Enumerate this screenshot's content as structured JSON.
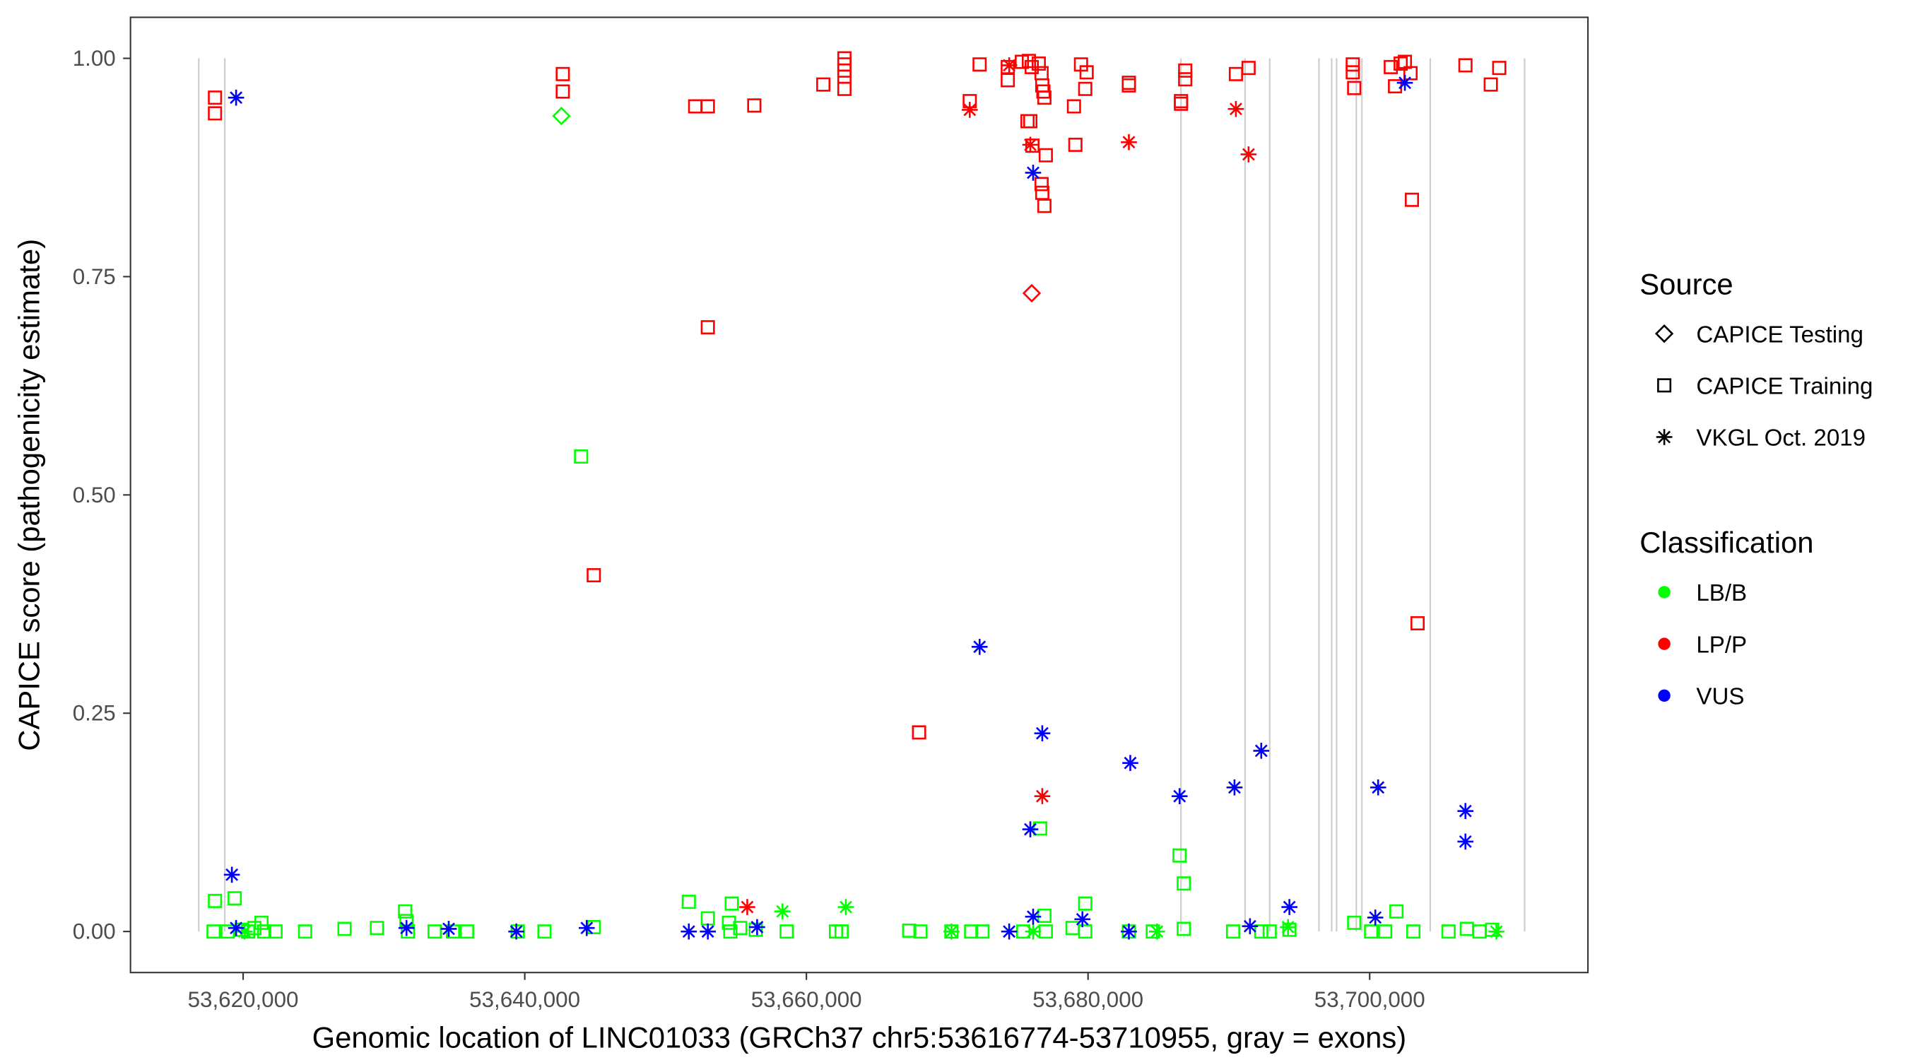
{
  "chart_data": {
    "type": "scatter",
    "xlabel": "Genomic location of LINC01033 (GRCh37 chr5:53616774-53710955, gray = exons)",
    "ylabel": "CAPICE score (pathogenicity estimate)",
    "xlim": [
      53612000,
      53715500
    ],
    "ylim": [
      -0.047,
      1.047
    ],
    "x_ticks": [
      53620000,
      53640000,
      53660000,
      53680000,
      53700000
    ],
    "x_tick_labels": [
      "53,620,000",
      "53,640,000",
      "53,660,000",
      "53,680,000",
      "53,700,000"
    ],
    "y_ticks": [
      0,
      0.25,
      0.5,
      0.75,
      1.0
    ],
    "y_tick_labels": [
      "0.00",
      "0.25",
      "0.50",
      "0.75",
      "1.00"
    ],
    "grid": false,
    "exons": [
      53616850,
      53618700,
      53686600,
      53691150,
      53692900,
      53696400,
      53697300,
      53697650,
      53699050,
      53699450,
      53704300,
      53711000
    ],
    "colors": {
      "LB/B": "#00ff00",
      "LP/P": "#ff0000",
      "VUS": "#0000ff",
      "exon": "#cccccc"
    },
    "legend": {
      "placement": "right",
      "source_title": "Source",
      "source_items": [
        {
          "label": "CAPICE Testing",
          "shape": "diamond"
        },
        {
          "label": "CAPICE Training",
          "shape": "square"
        },
        {
          "label": "VKGL Oct. 2019",
          "shape": "asterisk"
        }
      ],
      "class_title": "Classification",
      "class_items": [
        {
          "label": "LB/B",
          "color": "#00ff00"
        },
        {
          "label": "LP/P",
          "color": "#ff0000"
        },
        {
          "label": "VUS",
          "color": "#0000ff"
        }
      ]
    },
    "series": [
      {
        "source": "CAPICE Training",
        "classification": "LP/P",
        "points": [
          [
            53618000,
            0.955
          ],
          [
            53618000,
            0.937
          ],
          [
            53642700,
            0.982
          ],
          [
            53642700,
            0.962
          ],
          [
            53652100,
            0.945
          ],
          [
            53653000,
            0.945
          ],
          [
            53656300,
            0.946
          ],
          [
            53661200,
            0.97
          ],
          [
            53662700,
            1.0
          ],
          [
            53662700,
            0.993
          ],
          [
            53662700,
            0.986
          ],
          [
            53662700,
            0.979
          ],
          [
            53662700,
            0.965
          ],
          [
            53671600,
            0.951
          ],
          [
            53672300,
            0.993
          ],
          [
            53674300,
            0.99
          ],
          [
            53674300,
            0.975
          ],
          [
            53675300,
            0.996
          ],
          [
            53675800,
            0.997
          ],
          [
            53676000,
            0.99
          ],
          [
            53676500,
            0.994
          ],
          [
            53676700,
            0.983
          ],
          [
            53676750,
            0.969
          ],
          [
            53676830,
            0.962
          ],
          [
            53676900,
            0.955
          ],
          [
            53675700,
            0.928
          ],
          [
            53675900,
            0.928
          ],
          [
            53676050,
            0.9
          ],
          [
            53677000,
            0.889
          ],
          [
            53676700,
            0.856
          ],
          [
            53676750,
            0.846
          ],
          [
            53676900,
            0.831
          ],
          [
            53679000,
            0.945
          ],
          [
            53679100,
            0.901
          ],
          [
            53679500,
            0.993
          ],
          [
            53679800,
            0.965
          ],
          [
            53679900,
            0.984
          ],
          [
            53682900,
            0.972
          ],
          [
            53682900,
            0.969
          ],
          [
            53686600,
            0.948
          ],
          [
            53686600,
            0.951
          ],
          [
            53686900,
            0.986
          ],
          [
            53686900,
            0.976
          ],
          [
            53690500,
            0.982
          ],
          [
            53691400,
            0.989
          ],
          [
            53698800,
            0.984
          ],
          [
            53698800,
            0.993
          ],
          [
            53698900,
            0.966
          ],
          [
            53701500,
            0.99
          ],
          [
            53701800,
            0.968
          ],
          [
            53702200,
            0.994
          ],
          [
            53702500,
            0.996
          ],
          [
            53702900,
            0.983
          ],
          [
            53703000,
            0.838
          ],
          [
            53706800,
            0.992
          ],
          [
            53708600,
            0.97
          ],
          [
            53709200,
            0.989
          ],
          [
            53653000,
            0.692
          ],
          [
            53644900,
            0.408
          ],
          [
            53668000,
            0.228
          ],
          [
            53703400,
            0.353
          ]
        ]
      },
      {
        "source": "CAPICE Testing",
        "classification": "LP/P",
        "points": [
          [
            53676000,
            0.731
          ]
        ]
      },
      {
        "source": "VKGL Oct. 2019",
        "classification": "LP/P",
        "points": [
          [
            53671600,
            0.941
          ],
          [
            53674400,
            0.992
          ],
          [
            53675900,
            0.901
          ],
          [
            53682900,
            0.904
          ],
          [
            53690500,
            0.942
          ],
          [
            53691400,
            0.89
          ],
          [
            53676750,
            0.155
          ],
          [
            53655800,
            0.028
          ]
        ]
      },
      {
        "source": "CAPICE Testing",
        "classification": "LB/B",
        "points": [
          [
            53642600,
            0.934
          ]
        ]
      },
      {
        "source": "CAPICE Training",
        "classification": "LB/B",
        "points": [
          [
            53644000,
            0.544
          ],
          [
            53686500,
            0.087
          ],
          [
            53686800,
            0.055
          ],
          [
            53676600,
            0.118
          ],
          [
            53618000,
            0.035
          ],
          [
            53619400,
            0.038
          ],
          [
            53651650,
            0.034
          ],
          [
            53654700,
            0.032
          ],
          [
            53679800,
            0.032
          ],
          [
            53701900,
            0.023
          ],
          [
            53631500,
            0.023
          ],
          [
            53653000,
            0.015
          ],
          [
            53631600,
            0.012
          ],
          [
            53654500,
            0.01
          ],
          [
            53621300,
            0.01
          ],
          [
            53676900,
            0.018
          ],
          [
            53617900,
            0.0
          ],
          [
            53618900,
            0.0
          ],
          [
            53619900,
            0.002
          ],
          [
            53620350,
            0.0
          ],
          [
            53620800,
            0.004
          ],
          [
            53621500,
            0.0
          ],
          [
            53622300,
            0.0
          ],
          [
            53624400,
            0.0
          ],
          [
            53627200,
            0.003
          ],
          [
            53629500,
            0.004
          ],
          [
            53631700,
            0.0
          ],
          [
            53633600,
            0.0
          ],
          [
            53634900,
            0.0
          ],
          [
            53635900,
            0.0
          ],
          [
            53639500,
            0.0
          ],
          [
            53641400,
            0.0
          ],
          [
            53644900,
            0.005
          ],
          [
            53654600,
            0.0
          ],
          [
            53655300,
            0.004
          ],
          [
            53656400,
            0.002
          ],
          [
            53658600,
            0.0
          ],
          [
            53662100,
            0.0
          ],
          [
            53662500,
            0.0
          ],
          [
            53667300,
            0.001
          ],
          [
            53668100,
            0.0
          ],
          [
            53670300,
            0.0
          ],
          [
            53671700,
            0.0
          ],
          [
            53672500,
            0.0
          ],
          [
            53675400,
            0.0
          ],
          [
            53677000,
            0.0
          ],
          [
            53678900,
            0.004
          ],
          [
            53679800,
            0.0
          ],
          [
            53682900,
            0.0
          ],
          [
            53684600,
            0.0
          ],
          [
            53686800,
            0.003
          ],
          [
            53690300,
            0.0
          ],
          [
            53692300,
            0.0
          ],
          [
            53692900,
            0.0
          ],
          [
            53694300,
            0.002
          ],
          [
            53698900,
            0.01
          ],
          [
            53700100,
            0.0
          ],
          [
            53701100,
            0.0
          ],
          [
            53703100,
            0.0
          ],
          [
            53705600,
            0.0
          ],
          [
            53706900,
            0.003
          ],
          [
            53707800,
            0.0
          ],
          [
            53708700,
            0.002
          ]
        ]
      },
      {
        "source": "VKGL Oct. 2019",
        "classification": "LB/B",
        "points": [
          [
            53658300,
            0.023
          ],
          [
            53662800,
            0.028
          ],
          [
            53620100,
            0.0
          ],
          [
            53670300,
            0.0
          ],
          [
            53676100,
            0.0
          ],
          [
            53684900,
            0.0
          ],
          [
            53694200,
            0.005
          ],
          [
            53709000,
            0.0
          ]
        ]
      },
      {
        "source": "VKGL Oct. 2019",
        "classification": "VUS",
        "points": [
          [
            53619500,
            0.955
          ],
          [
            53619200,
            0.065
          ],
          [
            53619500,
            0.004
          ],
          [
            53631600,
            0.004
          ],
          [
            53634600,
            0.003
          ],
          [
            53639400,
            0.0
          ],
          [
            53644400,
            0.004
          ],
          [
            53651650,
            0.0
          ],
          [
            53653000,
            0.0
          ],
          [
            53656500,
            0.005
          ],
          [
            53674400,
            0.0
          ],
          [
            53676100,
            0.017
          ],
          [
            53679600,
            0.014
          ],
          [
            53682900,
            0.0
          ],
          [
            53691500,
            0.006
          ],
          [
            53694300,
            0.028
          ],
          [
            53700400,
            0.016
          ],
          [
            53676100,
            0.869
          ],
          [
            53672300,
            0.326
          ],
          [
            53676750,
            0.227
          ],
          [
            53683000,
            0.193
          ],
          [
            53686500,
            0.155
          ],
          [
            53690400,
            0.165
          ],
          [
            53692300,
            0.207
          ],
          [
            53700600,
            0.165
          ],
          [
            53706800,
            0.138
          ],
          [
            53706800,
            0.103
          ],
          [
            53675900,
            0.117
          ],
          [
            53702500,
            0.972
          ]
        ]
      }
    ]
  }
}
